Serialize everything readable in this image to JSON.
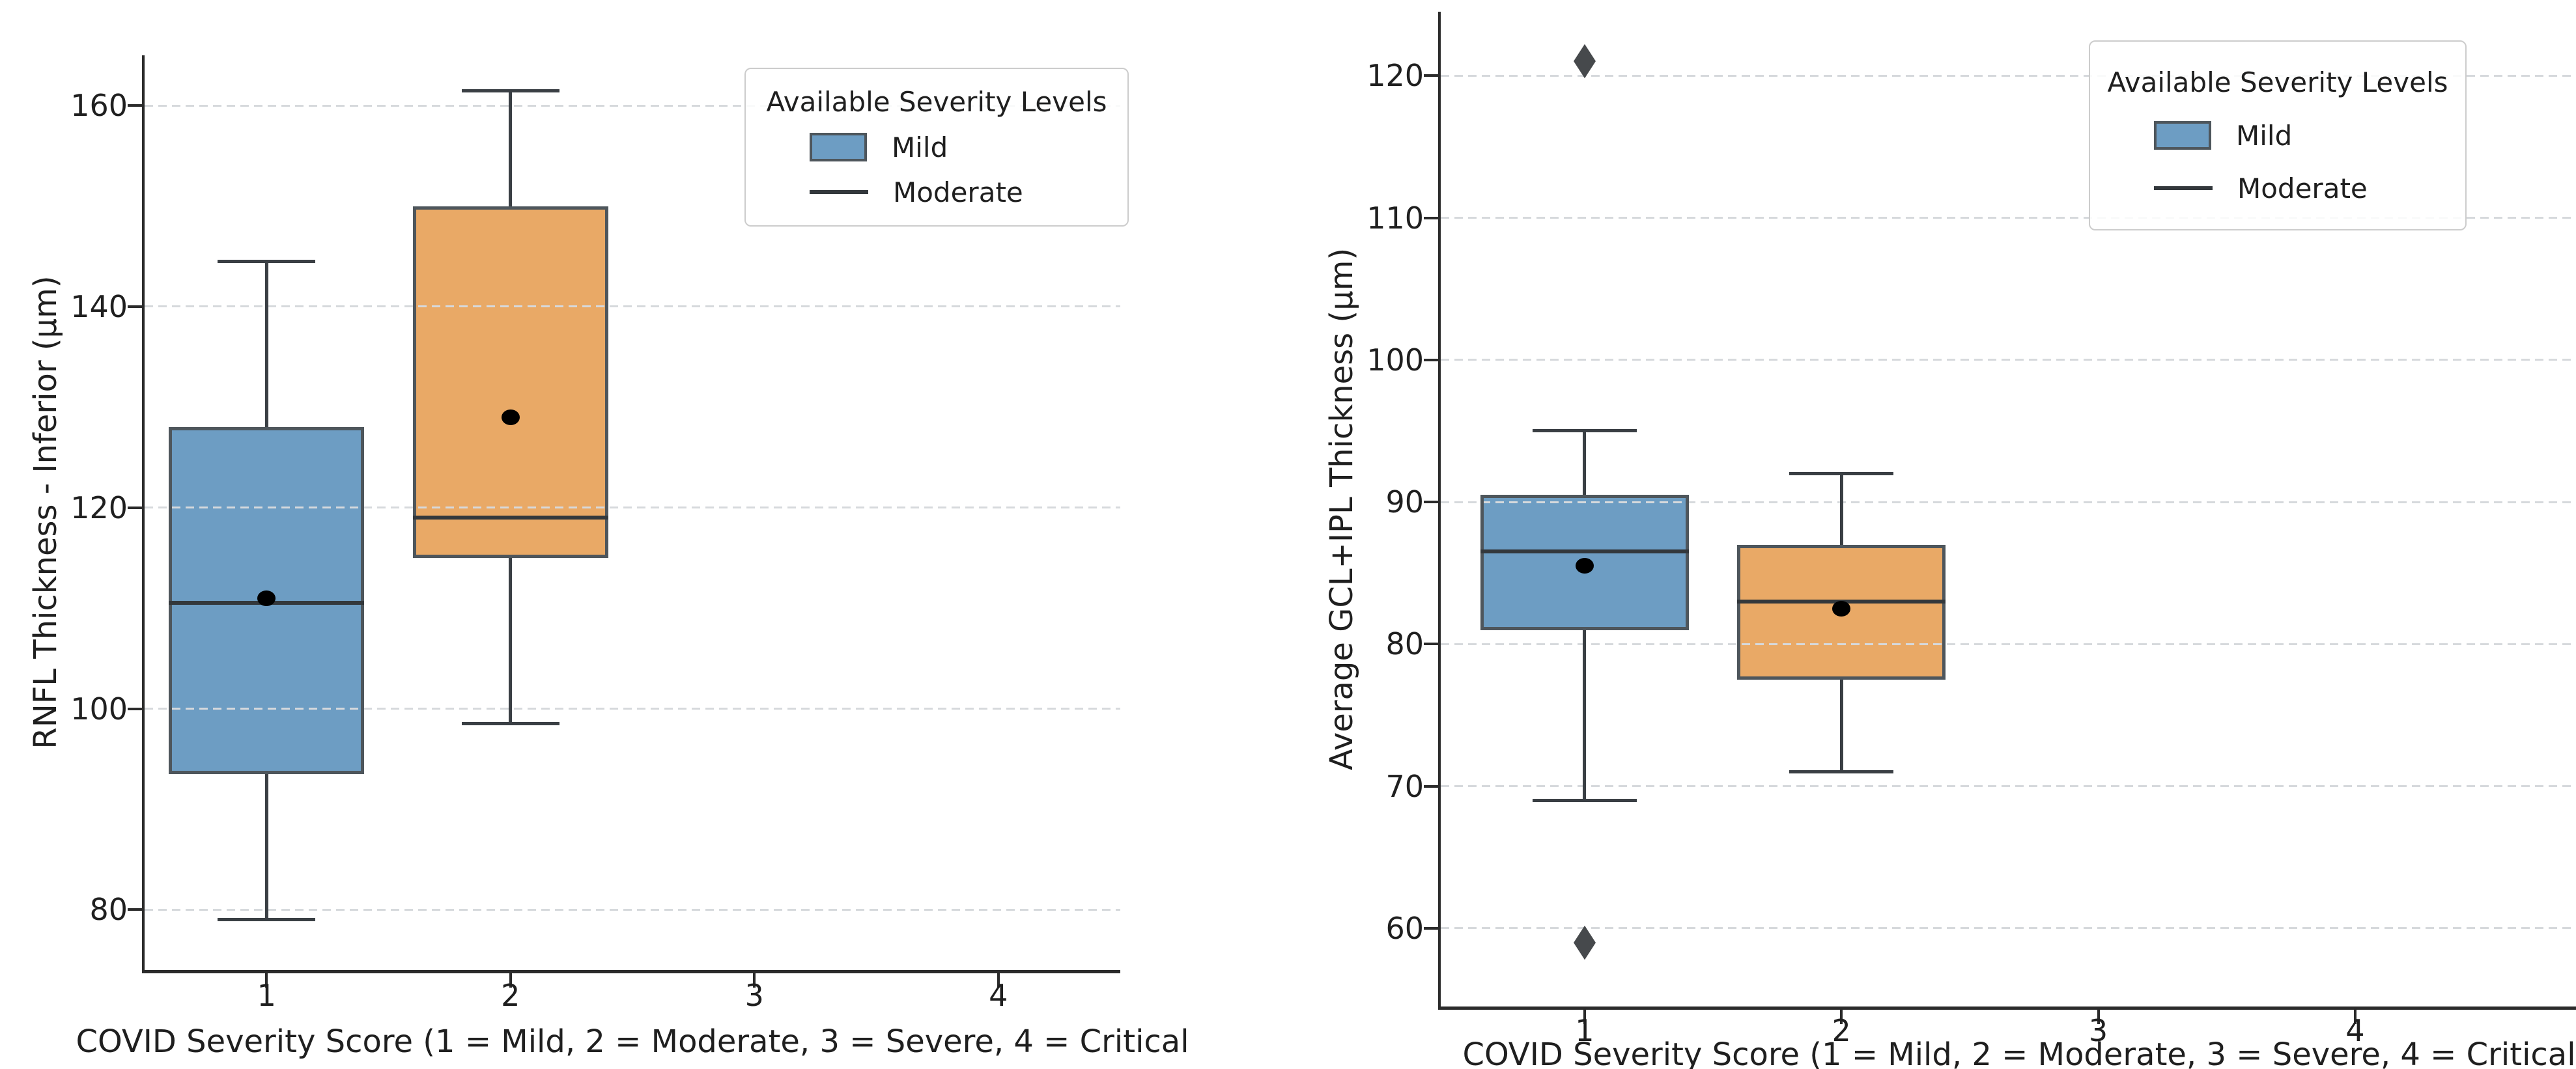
{
  "chart_data": [
    {
      "type": "box",
      "panel": "left",
      "title": "",
      "xlabel": "COVID Severity Score (1 = Mild, 2 = Moderate, 3 = Severe, 4 = Critical",
      "ylabel": "RNFL Thickness - Inferior (µm)",
      "categories": [
        "1",
        "2",
        "3",
        "4"
      ],
      "yticks": [
        80,
        100,
        120,
        140,
        160
      ],
      "ylim": [
        74,
        165
      ],
      "grid": "horizontal-dashed",
      "legend": {
        "title": "Available Severity Levels",
        "position": "upper-right",
        "entries": [
          {
            "label": "Mild",
            "swatch": "patch",
            "color": "#6d9dc3"
          },
          {
            "label": "Moderate",
            "swatch": "line",
            "color": "#33383c"
          }
        ]
      },
      "boxes": [
        {
          "category": "1",
          "severity": "Mild",
          "fill": "#6d9dc3",
          "whisker_low": 79,
          "q1": 93.5,
          "median": 110.5,
          "mean": 111,
          "q3": 128,
          "whisker_high": 144.5,
          "outliers": []
        },
        {
          "category": "2",
          "severity": "Moderate",
          "fill": "#e9a966",
          "whisker_low": 98.5,
          "q1": 115,
          "median": 119,
          "mean": 129,
          "q3": 150,
          "whisker_high": 161.5,
          "outliers": []
        }
      ]
    },
    {
      "type": "box",
      "panel": "right",
      "title": "",
      "xlabel": "COVID Severity Score (1 = Mild, 2 = Moderate, 3 = Severe, 4 = Critical",
      "ylabel": "Average GCL+IPL Thickness (µm)",
      "categories": [
        "1",
        "2",
        "3",
        "4"
      ],
      "yticks": [
        60,
        70,
        80,
        90,
        100,
        110,
        120
      ],
      "ylim": [
        54.5,
        124.5
      ],
      "grid": "horizontal-dashed",
      "legend": {
        "title": "Available Severity Levels",
        "position": "upper-right",
        "entries": [
          {
            "label": "Mild",
            "swatch": "patch",
            "color": "#6d9dc3"
          },
          {
            "label": "Moderate",
            "swatch": "line",
            "color": "#33383c"
          }
        ]
      },
      "boxes": [
        {
          "category": "1",
          "severity": "Mild",
          "fill": "#6d9dc3",
          "whisker_low": 69,
          "q1": 81,
          "median": 86.5,
          "mean": 85.5,
          "q3": 90.5,
          "whisker_high": 95,
          "outliers": [
            121,
            59
          ]
        },
        {
          "category": "2",
          "severity": "Moderate",
          "fill": "#e9a966",
          "whisker_low": 71,
          "q1": 77.5,
          "median": 83,
          "mean": 82.5,
          "q3": 87,
          "whisker_high": 92,
          "outliers": []
        }
      ]
    }
  ],
  "styles": {
    "grid_color": "#d6d9dc",
    "box_edge": "#4e565c",
    "whisker_color": "#3a3f44",
    "median_color": "#33383c",
    "mean_marker_color": "#000000",
    "outlier_color": "#46494c",
    "spine_color": "#2b2b2b",
    "text_color": "#1f1f1f",
    "legend_border": "#cccccc"
  }
}
